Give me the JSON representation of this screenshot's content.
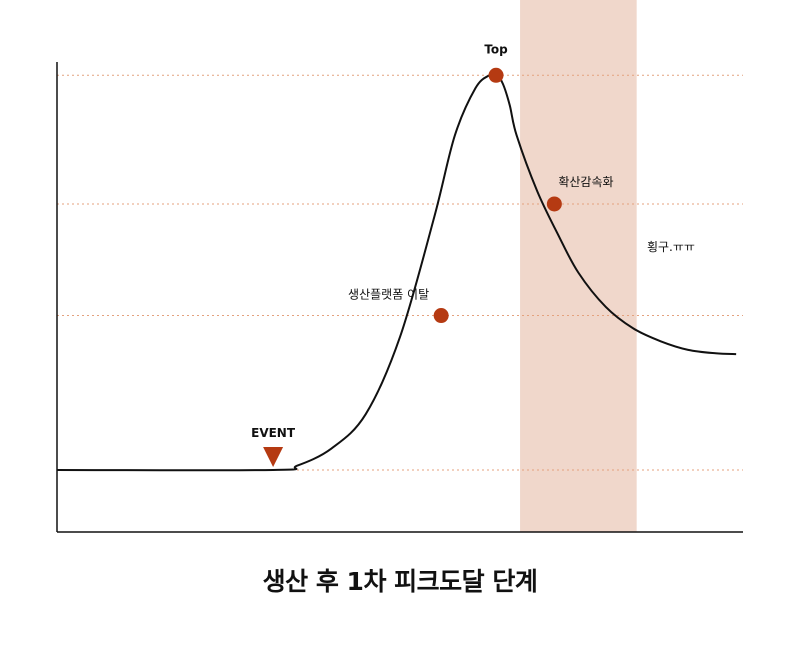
{
  "caption": "생산 후 1차 피크도달 단계",
  "colors": {
    "curve": "#111111",
    "marker": "#b53a12",
    "band": "#f0d7cb",
    "guide": "#e4a27e",
    "axis": "#111111"
  },
  "chart_data": {
    "type": "line",
    "title": "생산 후 1차 피크도달 단계",
    "xlabel": "",
    "ylabel": "",
    "xlim": [
      0,
      100
    ],
    "ylim": [
      0,
      100
    ],
    "grid": false,
    "curve": {
      "x": [
        0,
        31.5,
        35,
        40,
        45,
        50,
        55,
        58,
        61,
        63,
        64,
        65,
        66,
        67,
        70,
        73,
        76,
        80,
        84,
        88,
        92,
        96,
        99
      ],
      "y": [
        7.0,
        7.0,
        8.0,
        12.0,
        20.0,
        38.0,
        66.0,
        85.0,
        96.0,
        99.0,
        99.3,
        97.0,
        92.0,
        85.0,
        72.0,
        62.0,
        53.0,
        45.0,
        40.0,
        37.0,
        35.0,
        34.2,
        34.0
      ]
    },
    "guides_y": [
      7.0,
      43.0,
      69.0,
      99.0
    ],
    "highlight_band": {
      "x_range": [
        67.5,
        84.5
      ]
    },
    "event": {
      "x": 31.5,
      "label": "EVENT"
    },
    "markers": [
      {
        "name": "peak",
        "x": 64,
        "y": 99.0,
        "label": "Top",
        "label_pos": "above"
      },
      {
        "name": "diffusion-slowdown",
        "x": 72.5,
        "y": 69.0,
        "label": "확산감속화",
        "label_pos": "upper-right"
      },
      {
        "name": "platform-exit",
        "x": 56,
        "y": 43.0,
        "label": "생산플랫폼 이탈",
        "label_pos": "upper-left"
      }
    ],
    "annotations": [
      {
        "x": 86,
        "y": 58,
        "text": "횡구.ㅠㅠ"
      }
    ]
  }
}
